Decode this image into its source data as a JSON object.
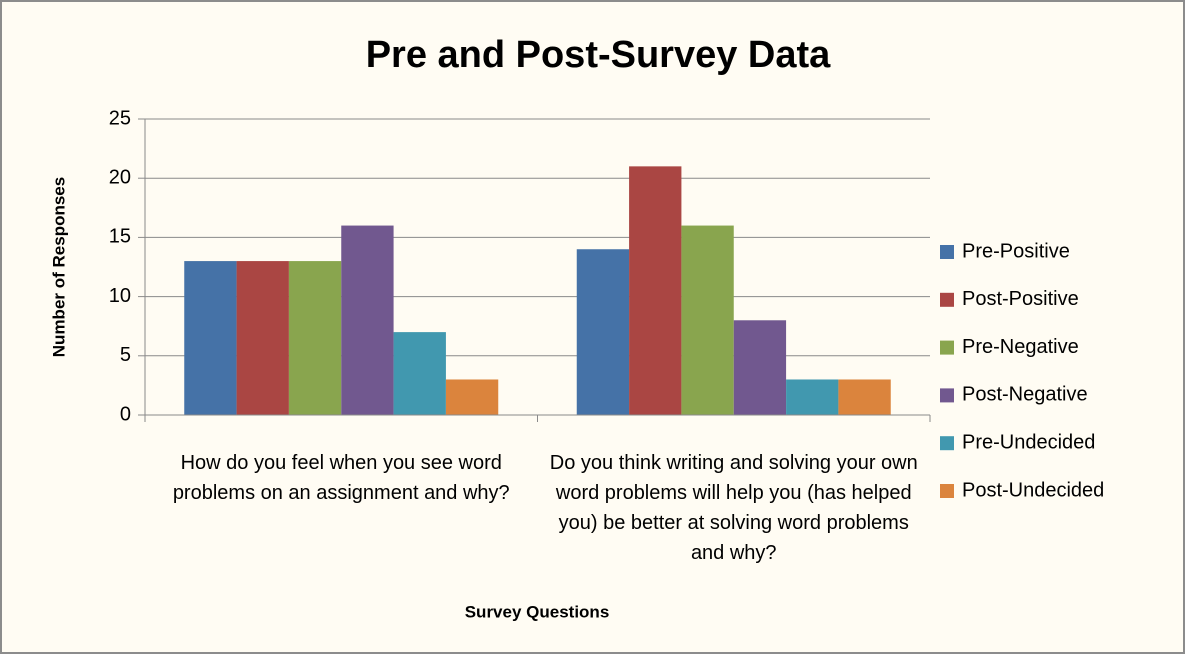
{
  "chart_data": {
    "type": "bar",
    "title": "Pre and Post-Survey Data",
    "x_label": "Survey Questions",
    "y_label": "Number of Responses",
    "categories": [
      "How do you feel when you see word problems on an assignment and why?",
      "Do you think writing and solving your own word problems will help you (has helped you) be better at solving word problems and why?"
    ],
    "series": [
      {
        "name": "Pre-Positive",
        "color": "#4572a7",
        "values": [
          13,
          14
        ]
      },
      {
        "name": "Post-Positive",
        "color": "#aa4643",
        "values": [
          13,
          21
        ]
      },
      {
        "name": "Pre-Negative",
        "color": "#89a54e",
        "values": [
          13,
          16
        ]
      },
      {
        "name": "Post-Negative",
        "color": "#71588f",
        "values": [
          16,
          8
        ]
      },
      {
        "name": "Pre-Undecided",
        "color": "#4198af",
        "values": [
          7,
          3
        ]
      },
      {
        "name": "Post-Undecided",
        "color": "#db843d",
        "values": [
          3,
          3
        ]
      }
    ],
    "ylim": [
      0,
      25
    ],
    "yticks": [
      0,
      5,
      10,
      15,
      20,
      25
    ],
    "grid": true,
    "legend": "right"
  }
}
